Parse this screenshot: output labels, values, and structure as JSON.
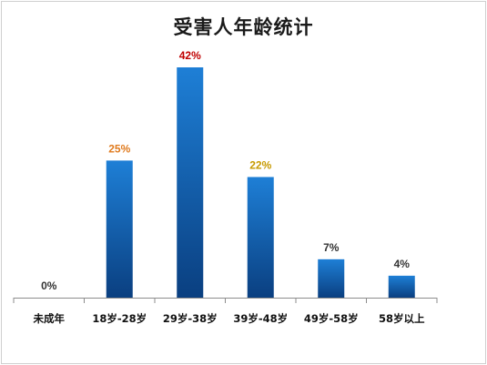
{
  "chart_data": {
    "type": "bar",
    "title": "受害人年龄统计",
    "categories": [
      "未成年",
      "18岁-28岁",
      "29岁-38岁",
      "39岁-48岁",
      "49岁-58岁",
      "58岁以上"
    ],
    "values": [
      0,
      25,
      42,
      22,
      7,
      4
    ],
    "value_labels": [
      "0%",
      "25%",
      "42%",
      "22%",
      "7%",
      "4%"
    ],
    "unit": "%",
    "label_colors": [
      "#333333",
      "#e07b1f",
      "#c00000",
      "#c79a00",
      "#333333",
      "#333333"
    ],
    "bar_color_top": "#1e7fd6",
    "bar_color_bottom": "#0a3f80",
    "ylim": [
      0,
      42
    ],
    "grid": false,
    "legend": "none"
  }
}
